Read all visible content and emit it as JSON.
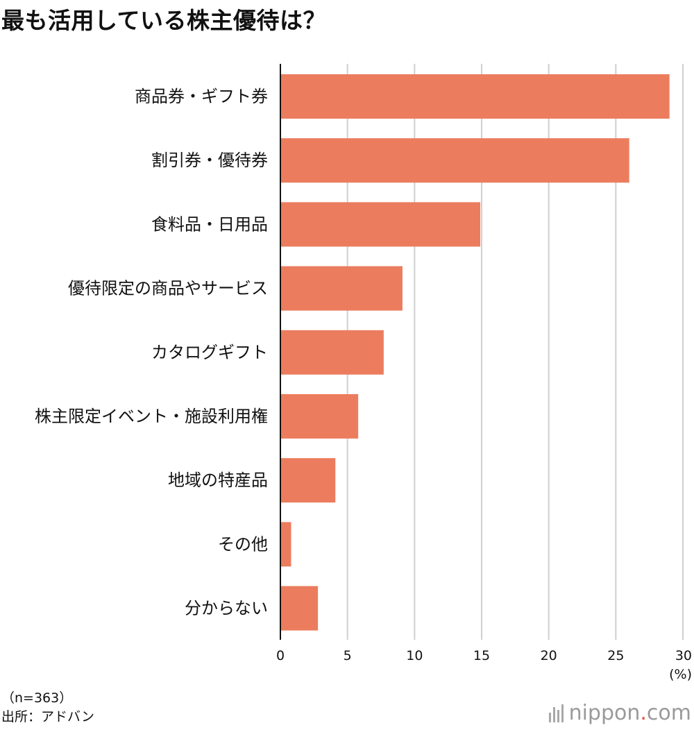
{
  "title": "最も活用している株主優待は？",
  "chart_data": {
    "type": "bar",
    "orientation": "horizontal",
    "title": "最も活用している株主優待は？",
    "categories": [
      "商品券・ギフト券",
      "割引券・優待券",
      "食料品・日用品",
      "優待限定の商品やサービス",
      "カタログギフト",
      "株主限定イベント・施設利用権",
      "地域の特産品",
      "その他",
      "分からない"
    ],
    "values": [
      29.0,
      26.0,
      14.9,
      9.1,
      7.7,
      5.8,
      4.1,
      0.8,
      2.8
    ],
    "xlabel": "(%)",
    "ylabel": "",
    "xlim": [
      0,
      30
    ],
    "x_ticks": [
      "0",
      "5",
      "10",
      "15",
      "20",
      "25",
      "30"
    ],
    "bar_color": "#EB7D5E",
    "grid": true
  },
  "notes": {
    "sample": "（n=363）",
    "source": "出所：アドバン"
  },
  "brand": {
    "name": "nippon",
    "dot": ".",
    "suffix": "com",
    "accent_color": "#E8503A"
  }
}
